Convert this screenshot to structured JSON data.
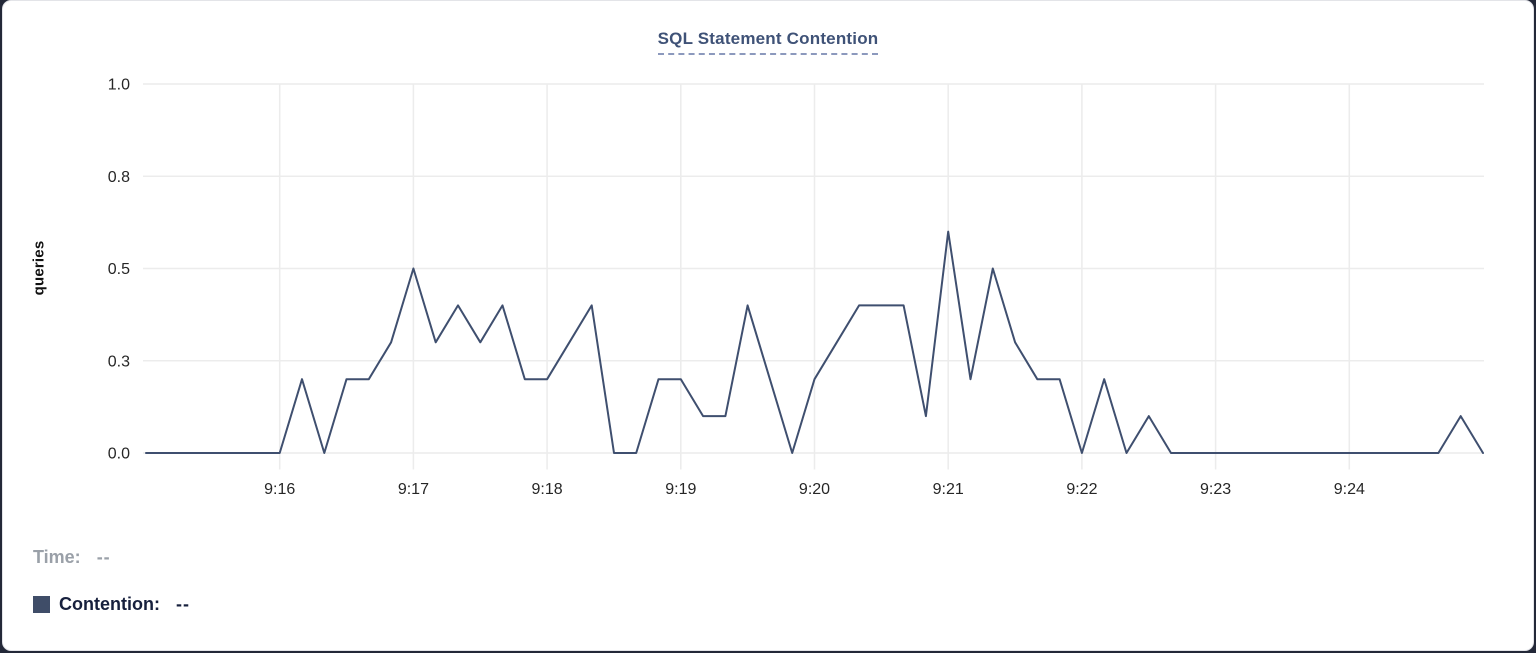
{
  "page": {
    "background_color": "#232838",
    "card_background": "#ffffff",
    "card_border_color": "#e3e4e8"
  },
  "chart": {
    "title": "SQL Statement Contention",
    "title_color": "#3f5277",
    "title_underline_color": "#8c99bd"
  },
  "chart_data": {
    "type": "line",
    "title": "SQL Statement Contention",
    "xlabel": "",
    "ylabel": "queries",
    "ylim": [
      0,
      1
    ],
    "grid": true,
    "grid_color": "#ececec",
    "axis_text_color": "#262626",
    "y_ticks": [
      {
        "value": 0,
        "label": "0.0"
      },
      {
        "value": 0.25,
        "label": "0.3"
      },
      {
        "value": 0.5,
        "label": "0.5"
      },
      {
        "value": 0.75,
        "label": "0.8"
      },
      {
        "value": 1,
        "label": "1.0"
      }
    ],
    "x_ticks": [
      "9:16",
      "9:17",
      "9:18",
      "9:19",
      "9:20",
      "9:21",
      "9:22",
      "9:23",
      "9:24"
    ],
    "x_start": "9:15:00",
    "x_end": "9:25:00",
    "interval_seconds": 10,
    "series": [
      {
        "name": "Contention",
        "color": "#3f4f6f",
        "values": [
          0,
          0,
          0,
          0,
          0,
          0,
          0,
          0.2,
          0,
          0.2,
          0.2,
          0.3,
          0.5,
          0.3,
          0.4,
          0.3,
          0.4,
          0.2,
          0.2,
          0.3,
          0.4,
          0,
          0,
          0.2,
          0.2,
          0.1,
          0.1,
          0.4,
          0.2,
          0,
          0.2,
          0.3,
          0.4,
          0.4,
          0.4,
          0.1,
          0.6,
          0.2,
          0.5,
          0.3,
          0.2,
          0.2,
          0,
          0.2,
          0,
          0.1,
          0,
          0,
          0,
          0,
          0,
          0,
          0,
          0,
          0,
          0,
          0,
          0,
          0,
          0.1,
          0
        ]
      }
    ],
    "legend_position": "bottom-left"
  },
  "legend": {
    "time_label": "Time:",
    "time_value": "--",
    "series_label": "Contention:",
    "series_value": "--",
    "swatch_color": "#3f4d68"
  }
}
